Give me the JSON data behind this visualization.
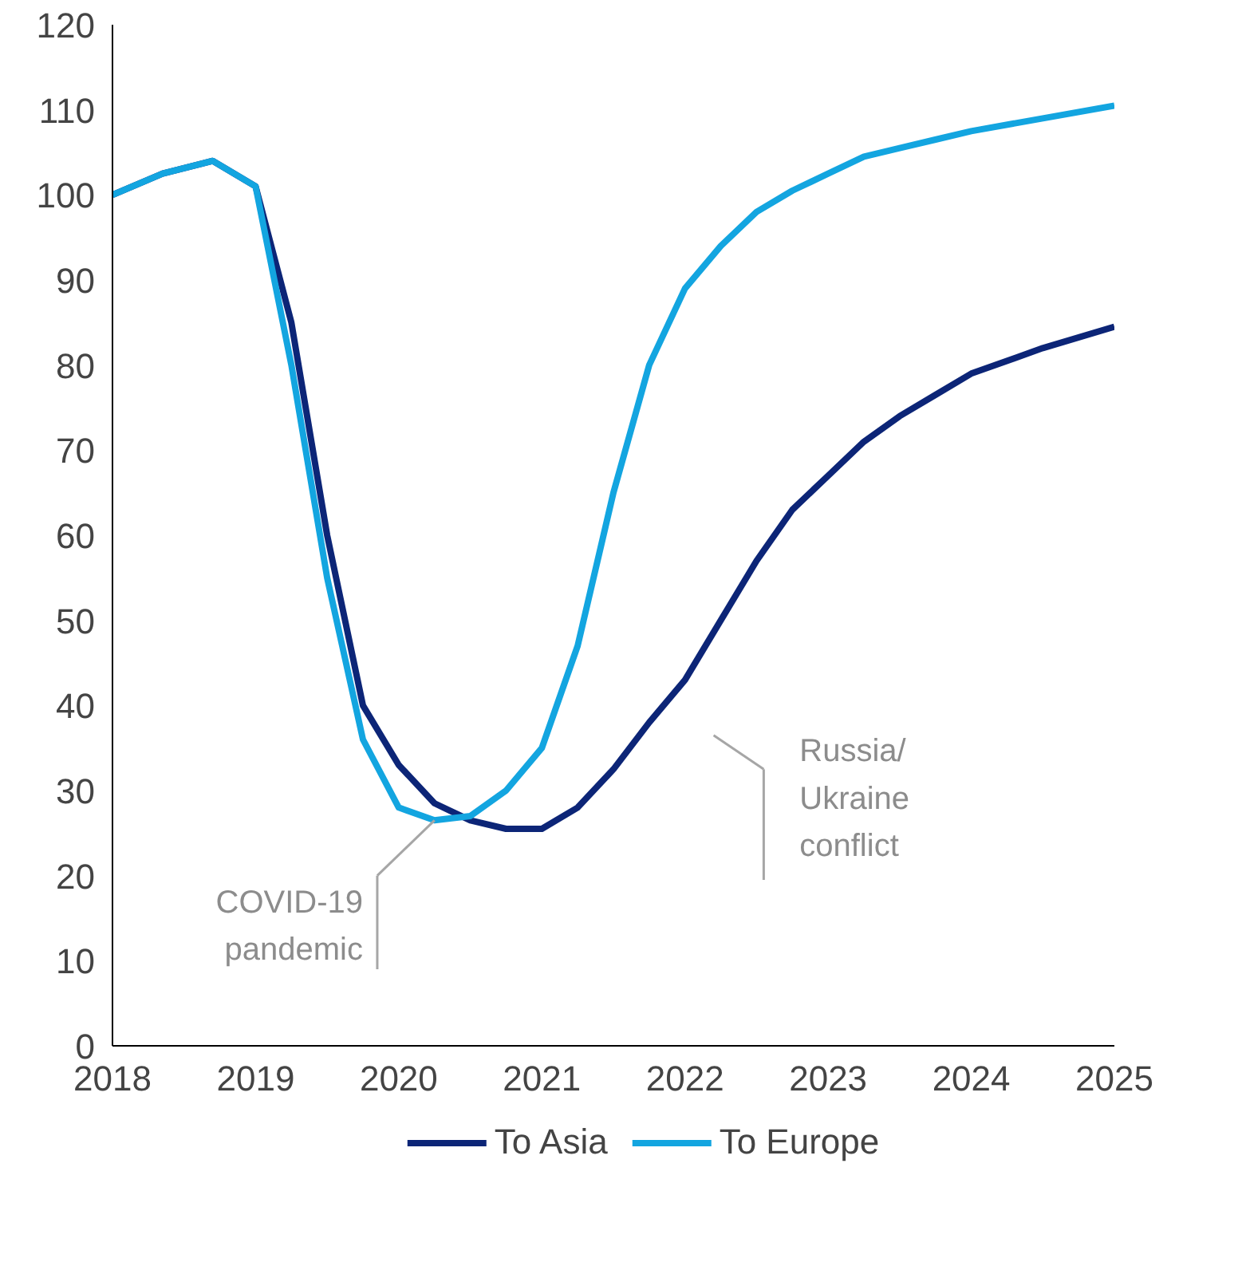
{
  "chart_data": {
    "type": "line",
    "x": [
      2018,
      2018.35,
      2018.7,
      2019,
      2019.25,
      2019.5,
      2019.75,
      2020,
      2020.25,
      2020.5,
      2020.75,
      2021,
      2021.25,
      2021.5,
      2021.75,
      2022,
      2022.25,
      2022.5,
      2022.75,
      2023,
      2023.25,
      2023.5,
      2023.75,
      2024,
      2024.5,
      2025
    ],
    "series": [
      {
        "name": "To Asia",
        "color": "#0c2577",
        "values": [
          100,
          102.5,
          104,
          101,
          85,
          60,
          40,
          33,
          28.5,
          26.5,
          25.5,
          25.5,
          28,
          32.5,
          38,
          43,
          50,
          57,
          63,
          67,
          71,
          74,
          76.5,
          79,
          82,
          84.5
        ]
      },
      {
        "name": "To Europe",
        "color": "#13a5e0",
        "values": [
          100,
          102.5,
          104,
          101,
          80,
          55,
          36,
          28,
          26.5,
          27,
          30,
          35,
          47,
          65,
          80,
          89,
          94,
          98,
          100.5,
          102.5,
          104.5,
          105.5,
          106.5,
          107.5,
          109,
          110.5
        ]
      }
    ],
    "xlim": [
      2018,
      2025
    ],
    "xticks": [
      2018,
      2019,
      2020,
      2021,
      2022,
      2023,
      2024,
      2025
    ],
    "ylim": [
      0,
      120
    ],
    "yticks": [
      0,
      10,
      20,
      30,
      40,
      50,
      60,
      70,
      80,
      90,
      100,
      110,
      120
    ],
    "grid": false,
    "legend": "bottom",
    "marker": "none",
    "line_style": "solid",
    "annotations": [
      {
        "text": "COVID-19\npandemic",
        "x": 2020.25,
        "y": 26.5
      },
      "Russia/\nUkraine\nconflict"
    ]
  }
}
